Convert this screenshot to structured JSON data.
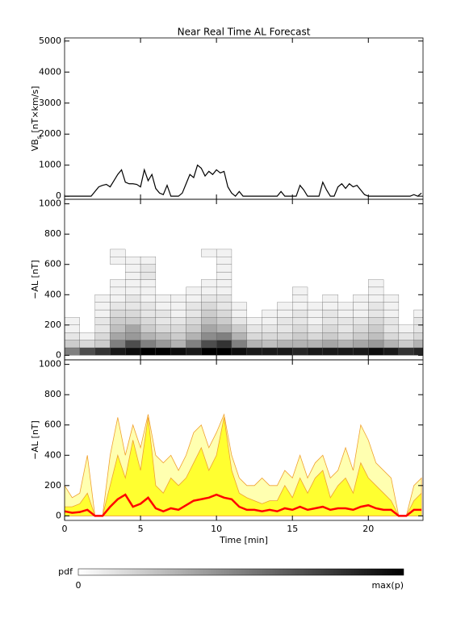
{
  "chart_data": [
    {
      "type": "line",
      "title": "Near Real Time AL Forecast",
      "ylabel": [
        "VB",
        "s",
        " [nT×km/s]"
      ],
      "xlim": [
        0,
        23.6
      ],
      "xticks": [
        0,
        5,
        10,
        15,
        20
      ],
      "ylim": [
        -100,
        5100
      ],
      "yticks": [
        0,
        1000,
        2000,
        3000,
        4000,
        5000
      ],
      "color": "#000000",
      "x": [
        0,
        0.25,
        0.5,
        0.75,
        1,
        1.25,
        1.5,
        1.75,
        2,
        2.25,
        2.5,
        2.75,
        3,
        3.25,
        3.5,
        3.75,
        4,
        4.25,
        4.5,
        4.75,
        5,
        5.25,
        5.5,
        5.75,
        6,
        6.25,
        6.5,
        6.75,
        7,
        7.25,
        7.5,
        7.75,
        8,
        8.25,
        8.5,
        8.75,
        9,
        9.25,
        9.5,
        9.75,
        10,
        10.25,
        10.5,
        10.75,
        11,
        11.25,
        11.5,
        11.75,
        12,
        12.25,
        12.5,
        12.75,
        13,
        13.25,
        13.5,
        13.75,
        14,
        14.25,
        14.5,
        14.75,
        15,
        15.25,
        15.5,
        15.75,
        16,
        16.25,
        16.5,
        16.75,
        17,
        17.25,
        17.5,
        17.75,
        18,
        18.25,
        18.5,
        18.75,
        19,
        19.25,
        19.5,
        19.75,
        20,
        20.25,
        20.5,
        20.75,
        21,
        21.25,
        21.5,
        21.75,
        22,
        22.25,
        22.5,
        22.75,
        23,
        23.25,
        23.5
      ],
      "values": [
        0,
        0,
        0,
        0,
        0,
        0,
        0,
        0,
        150,
        300,
        350,
        380,
        300,
        500,
        700,
        850,
        450,
        400,
        400,
        380,
        300,
        850,
        500,
        700,
        250,
        100,
        50,
        350,
        0,
        0,
        0,
        100,
        400,
        700,
        600,
        1000,
        900,
        650,
        800,
        700,
        850,
        750,
        800,
        300,
        100,
        0,
        150,
        0,
        0,
        0,
        0,
        0,
        0,
        0,
        0,
        0,
        0,
        150,
        0,
        0,
        0,
        0,
        350,
        200,
        0,
        0,
        0,
        0,
        450,
        200,
        0,
        0,
        300,
        400,
        250,
        400,
        300,
        350,
        200,
        50,
        0,
        0,
        0,
        0,
        0,
        0,
        0,
        0,
        0,
        0,
        0,
        0,
        50,
        0,
        100
      ]
    },
    {
      "type": "heatmap",
      "ylabel": [
        "−AL [nT]"
      ],
      "xlim": [
        0,
        23.6
      ],
      "xticks": [
        0,
        5,
        10,
        15,
        20
      ],
      "ylim": [
        -30,
        1030
      ],
      "yticks": [
        0,
        200,
        400,
        600,
        800,
        1000
      ],
      "xbins": [
        0,
        1,
        2,
        3,
        4,
        5,
        6,
        7,
        8,
        9,
        10,
        11,
        12,
        13,
        14,
        15,
        16,
        17,
        18,
        19,
        20,
        21,
        22,
        23,
        24
      ],
      "ybins": [
        0,
        50,
        100,
        150,
        200,
        250,
        300,
        350,
        400,
        450,
        500,
        550,
        600,
        650,
        700
      ],
      "z": [
        [
          0.5,
          0.7,
          0.8,
          0.9,
          0.95,
          1,
          1,
          0.95,
          0.9,
          1,
          1,
          0.95,
          0.9,
          0.9,
          0.9,
          0.85,
          0.9,
          0.9,
          0.9,
          0.9,
          0.95,
          0.9,
          0.8,
          0.85
        ],
        [
          0.2,
          0.15,
          0.2,
          0.5,
          0.7,
          0.5,
          0.4,
          0.3,
          0.5,
          0.7,
          0.8,
          0.5,
          0.3,
          0.25,
          0.3,
          0.3,
          0.3,
          0.35,
          0.3,
          0.35,
          0.4,
          0.3,
          0.2,
          0.3
        ],
        [
          0.1,
          0.05,
          0.15,
          0.35,
          0.4,
          0.3,
          0.25,
          0.2,
          0.3,
          0.45,
          0.5,
          0.3,
          0.15,
          0.15,
          0.15,
          0.2,
          0.15,
          0.2,
          0.15,
          0.2,
          0.25,
          0.15,
          0.1,
          0.15
        ],
        [
          0.05,
          0,
          0.1,
          0.25,
          0.35,
          0.2,
          0.15,
          0.15,
          0.2,
          0.35,
          0.3,
          0.2,
          0.1,
          0.1,
          0.1,
          0.15,
          0.1,
          0.15,
          0.1,
          0.15,
          0.2,
          0.1,
          0.05,
          0.1
        ],
        [
          0.05,
          0,
          0.1,
          0.2,
          0.2,
          0.15,
          0.1,
          0.1,
          0.15,
          0.25,
          0.2,
          0.1,
          0.05,
          0.05,
          0.1,
          0.1,
          0.05,
          0.1,
          0.1,
          0.1,
          0.15,
          0.1,
          0,
          0.1
        ],
        [
          0,
          0,
          0.05,
          0.15,
          0.15,
          0.1,
          0.1,
          0.05,
          0.1,
          0.2,
          0.15,
          0.05,
          0,
          0.05,
          0.05,
          0.1,
          0.05,
          0.1,
          0.05,
          0.05,
          0.1,
          0.05,
          0,
          0.05
        ],
        [
          0,
          0,
          0.05,
          0.1,
          0.1,
          0.1,
          0.05,
          0.05,
          0.1,
          0.15,
          0.1,
          0.05,
          0,
          0,
          0.05,
          0.05,
          0.05,
          0.05,
          0.05,
          0.05,
          0.1,
          0.05,
          0,
          0
        ],
        [
          0,
          0,
          0.05,
          0.05,
          0.1,
          0.05,
          0.05,
          0.05,
          0.05,
          0.1,
          0.1,
          0,
          0,
          0,
          0,
          0.05,
          0,
          0.05,
          0,
          0.05,
          0.05,
          0.05,
          0,
          0
        ],
        [
          0,
          0,
          0,
          0.05,
          0.05,
          0.05,
          0,
          0,
          0.05,
          0.05,
          0.05,
          0,
          0,
          0,
          0,
          0.05,
          0,
          0,
          0,
          0,
          0.05,
          0,
          0,
          0
        ],
        [
          0,
          0,
          0,
          0.05,
          0.05,
          0.05,
          0,
          0,
          0,
          0.05,
          0.05,
          0,
          0,
          0,
          0,
          0,
          0,
          0,
          0,
          0,
          0.05,
          0,
          0,
          0
        ],
        [
          0,
          0,
          0,
          0,
          0.05,
          0.1,
          0,
          0,
          0,
          0,
          0.05,
          0,
          0,
          0,
          0,
          0,
          0,
          0,
          0,
          0,
          0,
          0,
          0,
          0
        ],
        [
          0,
          0,
          0,
          0,
          0.05,
          0.1,
          0,
          0,
          0,
          0,
          0.05,
          0,
          0,
          0,
          0,
          0,
          0,
          0,
          0,
          0,
          0,
          0,
          0,
          0
        ],
        [
          0,
          0,
          0,
          0.05,
          0.05,
          0.05,
          0,
          0,
          0,
          0,
          0.05,
          0,
          0,
          0,
          0,
          0,
          0,
          0,
          0,
          0,
          0,
          0,
          0,
          0
        ],
        [
          0,
          0,
          0,
          0.05,
          0,
          0,
          0,
          0,
          0,
          0.05,
          0.05,
          0,
          0,
          0,
          0,
          0,
          0,
          0,
          0,
          0,
          0,
          0,
          0,
          0
        ]
      ]
    },
    {
      "type": "band",
      "ylabel": [
        "−AL [nT]"
      ],
      "xlabel": "Time [min]",
      "xlim": [
        0,
        23.6
      ],
      "xticks": [
        0,
        5,
        10,
        15,
        20
      ],
      "ylim": [
        -30,
        1030
      ],
      "yticks": [
        0,
        200,
        400,
        600,
        800,
        1000
      ],
      "x": [
        0,
        0.5,
        1,
        1.5,
        2,
        2.5,
        3,
        3.5,
        4,
        4.5,
        5,
        5.5,
        6,
        6.5,
        7,
        7.5,
        8,
        8.5,
        9,
        9.5,
        10,
        10.5,
        11,
        11.5,
        12,
        12.5,
        13,
        13.5,
        14,
        14.5,
        15,
        15.5,
        16,
        16.5,
        17,
        17.5,
        18,
        18.5,
        19,
        19.5,
        20,
        20.5,
        21,
        21.5,
        22,
        22.5,
        23,
        23.5
      ],
      "series": [
        {
          "color": "#ffffb0",
          "values": [
            200,
            120,
            150,
            400,
            0,
            0,
            400,
            650,
            400,
            600,
            450,
            670,
            400,
            350,
            400,
            300,
            400,
            550,
            600,
            450,
            550,
            670,
            400,
            250,
            200,
            200,
            250,
            200,
            200,
            300,
            250,
            400,
            250,
            350,
            400,
            250,
            300,
            450,
            300,
            600,
            500,
            350,
            300,
            250,
            0,
            0,
            200,
            250
          ]
        },
        {
          "color": "#ffff30",
          "values": [
            60,
            60,
            80,
            150,
            0,
            0,
            200,
            400,
            250,
            500,
            300,
            650,
            200,
            150,
            250,
            200,
            250,
            350,
            450,
            300,
            400,
            650,
            300,
            150,
            120,
            100,
            80,
            100,
            100,
            200,
            120,
            250,
            150,
            250,
            300,
            120,
            200,
            250,
            150,
            350,
            250,
            200,
            150,
            100,
            0,
            0,
            100,
            150
          ]
        },
        {
          "color": "#ff0000",
          "values": [
            30,
            20,
            25,
            40,
            0,
            0,
            60,
            110,
            140,
            60,
            80,
            120,
            50,
            30,
            50,
            40,
            70,
            100,
            110,
            120,
            140,
            120,
            110,
            60,
            40,
            40,
            30,
            40,
            30,
            50,
            40,
            60,
            40,
            50,
            60,
            40,
            50,
            50,
            40,
            60,
            70,
            50,
            40,
            40,
            0,
            0,
            40,
            40
          ]
        }
      ]
    }
  ],
  "colorbar": {
    "label": "pdf",
    "min_label": "0",
    "max_label": "max(p)"
  }
}
